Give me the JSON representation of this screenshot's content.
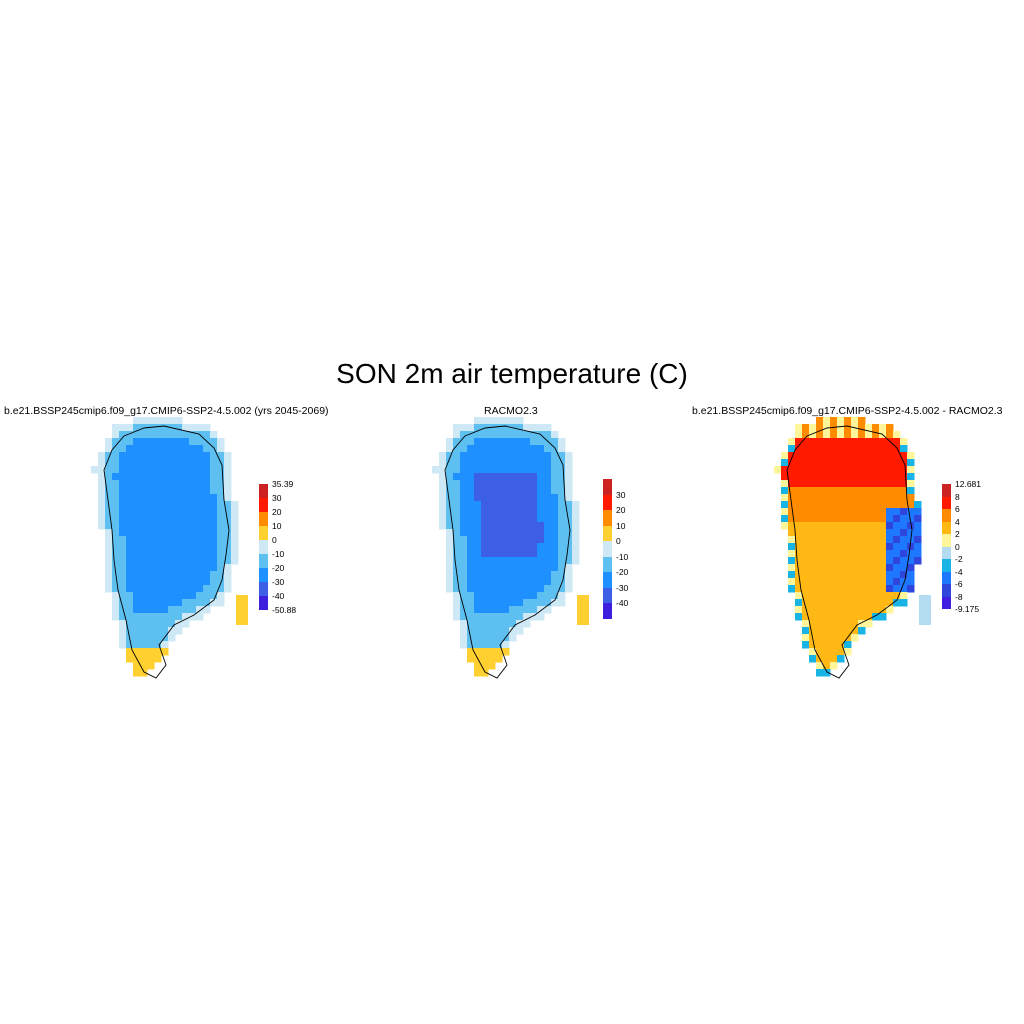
{
  "title": "SON 2m air temperature (C)",
  "panels": [
    {
      "id": "model",
      "title": "b.e21.BSSP245cmip6.f09_g17.CMIP6-SSP2-4.5.002 (yrs 2045-2069)",
      "colorbar": {
        "labels": [
          "35.39",
          "30",
          "20",
          "10",
          "0",
          "-10",
          "-20",
          "-30",
          "-40",
          "-50.88"
        ],
        "colors": [
          "#cc2222",
          "#ff1a00",
          "#ff8c00",
          "#ffd030",
          "#cfe8f5",
          "#5ec0f0",
          "#1e90ff",
          "#3c5fe6",
          "#3f1ee0"
        ]
      }
    },
    {
      "id": "racmo",
      "title": "RACMO2.3",
      "colorbar": {
        "labels": [
          "30",
          "20",
          "10",
          "0",
          "-10",
          "-20",
          "-30",
          "-40"
        ],
        "colors": [
          "#cc2222",
          "#ff1a00",
          "#ff8c00",
          "#ffd030",
          "#cfe8f5",
          "#5ec0f0",
          "#1e90ff",
          "#3c5fe6",
          "#3f1ee0"
        ]
      }
    },
    {
      "id": "difference",
      "title": "b.e21.BSSP245cmip6.f09_g17.CMIP6-SSP2-4.5.002 - RACMO2.3",
      "colorbar": {
        "labels": [
          "12.681",
          "8",
          "6",
          "4",
          "2",
          "0",
          "-2",
          "-4",
          "-6",
          "-8",
          "-9.175"
        ],
        "colors": [
          "#cc2222",
          "#ff1a00",
          "#ff8c00",
          "#ffb814",
          "#fff59a",
          "#b4dcf0",
          "#19b4e6",
          "#1e78ff",
          "#2f46dc",
          "#3f1ee0"
        ]
      }
    }
  ]
}
